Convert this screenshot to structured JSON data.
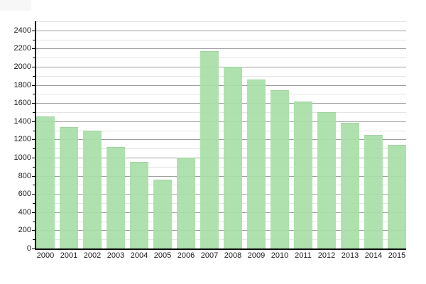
{
  "chart_data": {
    "type": "bar",
    "title": "",
    "xlabel": "",
    "ylabel": "",
    "categories": [
      "2000",
      "2001",
      "2002",
      "2003",
      "2004",
      "2005",
      "2006",
      "2007",
      "2008",
      "2009",
      "2010",
      "2011",
      "2012",
      "2013",
      "2014",
      "2015"
    ],
    "values": [
      1450,
      1340,
      1300,
      1120,
      950,
      760,
      1000,
      2170,
      2000,
      1860,
      1740,
      1620,
      1500,
      1380,
      1250,
      1140
    ],
    "ylim": [
      0,
      2500
    ],
    "y_major_step": 200,
    "y_minor_step": 100,
    "y_tick_labels": [
      "0",
      "200",
      "400",
      "600",
      "800",
      "1000",
      "1200",
      "1400",
      "1600",
      "1800",
      "2000",
      "2200",
      "2400"
    ],
    "grid": true,
    "legend_position": "none",
    "colors": {
      "bar_fill": "#a8dfa8",
      "bar_fill_alpha": 0.93,
      "major_grid": "#9f9f9f",
      "minor_grid": "#e4e4e4",
      "axis": "#000000",
      "label": "#1a1a1a",
      "background": "#ffffff",
      "corner_artifact": "#f7f7f7"
    }
  }
}
